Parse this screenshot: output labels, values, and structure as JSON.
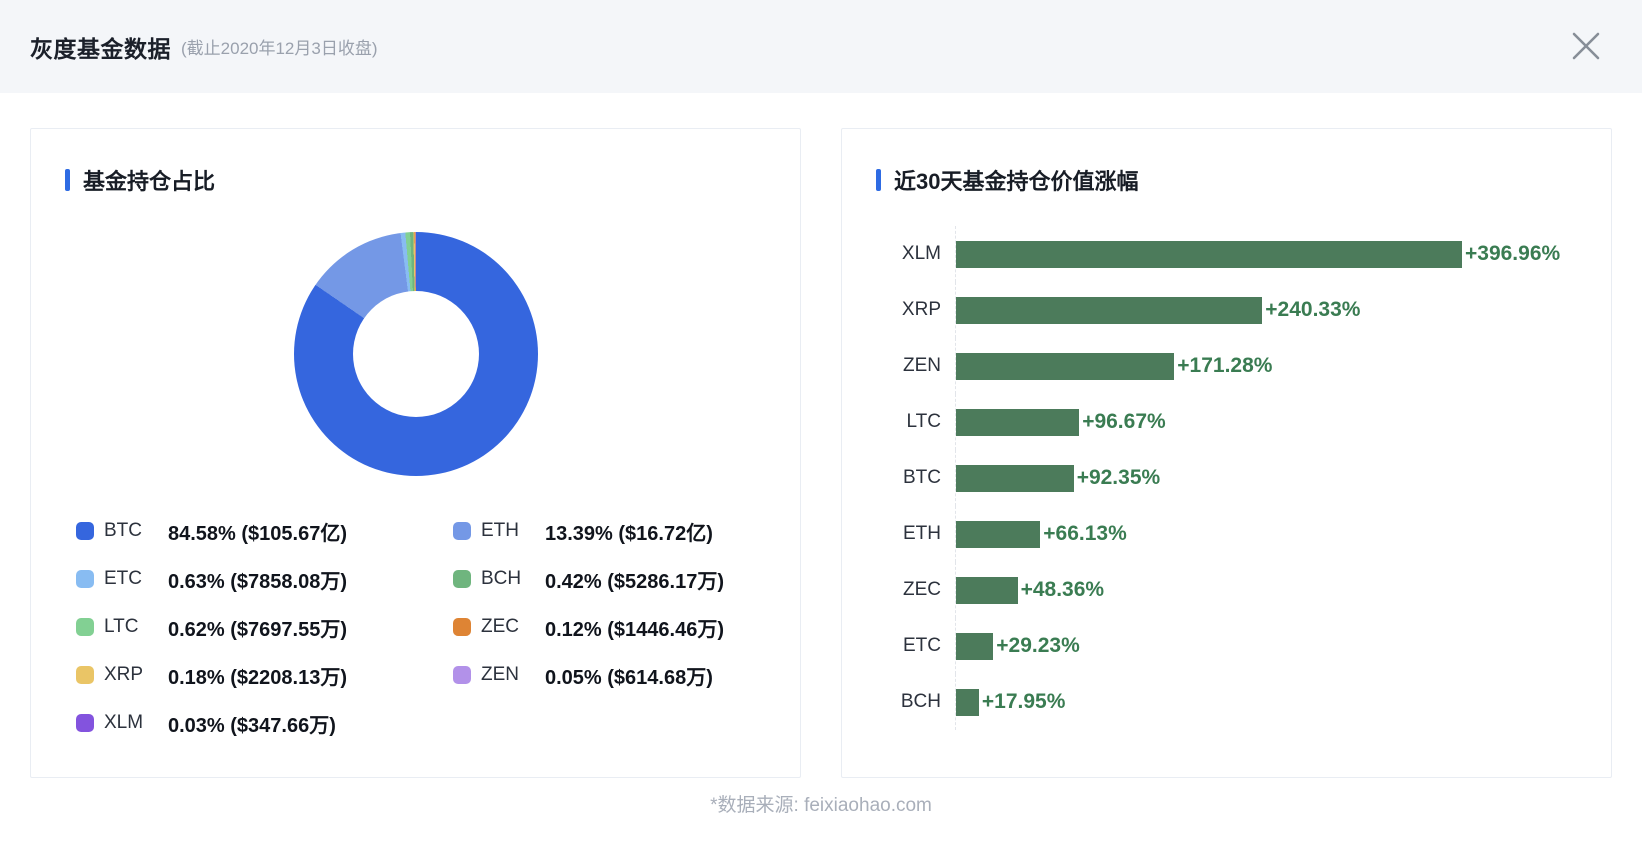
{
  "header": {
    "title": "灰度基金数据",
    "subtitle": "(截止2020年12月3日收盘)"
  },
  "footer": {
    "source_note": "*数据来源: feixiaohao.com"
  },
  "accent_color": "#2e6be3",
  "chart_data": [
    {
      "type": "pie",
      "title": "基金持仓占比",
      "donut": true,
      "legend_position": "bottom",
      "slices": [
        {
          "name": "BTC",
          "pct": 84.58,
          "display": "84.58% ($105.67亿)",
          "color": "#3566de"
        },
        {
          "name": "ETH",
          "pct": 13.39,
          "display": "13.39% ($16.72亿)",
          "color": "#7498e6"
        },
        {
          "name": "ETC",
          "pct": 0.63,
          "display": "0.63% ($7858.08万)",
          "color": "#88bcf2"
        },
        {
          "name": "LTC",
          "pct": 0.62,
          "display": "0.62% ($7697.55万)",
          "color": "#82d093"
        },
        {
          "name": "BCH",
          "pct": 0.42,
          "display": "0.42% ($5286.17万)",
          "color": "#6fb57e"
        },
        {
          "name": "XRP",
          "pct": 0.18,
          "display": "0.18% ($2208.13万)",
          "color": "#eac566"
        },
        {
          "name": "ZEC",
          "pct": 0.12,
          "display": "0.12% ($1446.46万)",
          "color": "#de8434"
        },
        {
          "name": "ZEN",
          "pct": 0.05,
          "display": "0.05% ($614.68万)",
          "color": "#b291e9"
        },
        {
          "name": "XLM",
          "pct": 0.03,
          "display": "0.03% ($347.66万)",
          "color": "#8353de"
        }
      ],
      "legend_columns": [
        [
          "BTC",
          "ETC",
          "LTC",
          "XRP",
          "XLM"
        ],
        [
          "ETH",
          "BCH",
          "ZEC",
          "ZEN"
        ]
      ]
    },
    {
      "type": "bar",
      "title": "近30天基金持仓价值涨幅",
      "orientation": "horizontal",
      "categories": [
        "XLM",
        "XRP",
        "ZEN",
        "LTC",
        "BTC",
        "ETH",
        "ZEC",
        "ETC",
        "BCH"
      ],
      "values": [
        396.96,
        240.33,
        171.28,
        96.67,
        92.35,
        66.13,
        48.36,
        29.23,
        17.95
      ],
      "value_labels": [
        "+396.96%",
        "+240.33%",
        "+171.28%",
        "+96.67%",
        "+92.35%",
        "+66.13%",
        "+48.36%",
        "+29.23%",
        "+17.95%"
      ],
      "xlim": [
        0,
        396.96
      ],
      "grid": "dashed-axis-only",
      "bar_color": "#4c7b5b",
      "label_color": "#3a7c52"
    }
  ]
}
